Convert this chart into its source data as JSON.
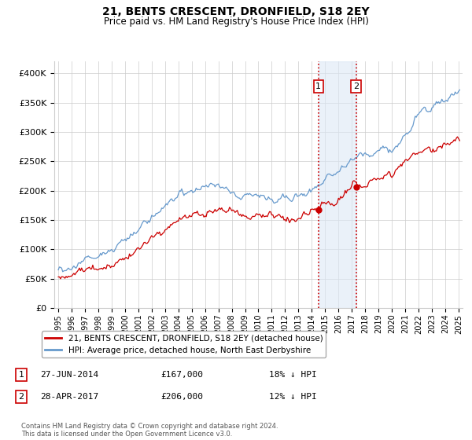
{
  "title": "21, BENTS CRESCENT, DRONFIELD, S18 2EY",
  "subtitle": "Price paid vs. HM Land Registry's House Price Index (HPI)",
  "legend_label_red": "21, BENTS CRESCENT, DRONFIELD, S18 2EY (detached house)",
  "legend_label_blue": "HPI: Average price, detached house, North East Derbyshire",
  "transaction1_label": "1",
  "transaction1_date": "27-JUN-2014",
  "transaction1_price": "£167,000",
  "transaction1_hpi": "18% ↓ HPI",
  "transaction2_label": "2",
  "transaction2_date": "28-APR-2017",
  "transaction2_price": "£206,000",
  "transaction2_hpi": "12% ↓ HPI",
  "footer": "Contains HM Land Registry data © Crown copyright and database right 2024.\nThis data is licensed under the Open Government Licence v3.0.",
  "ylim": [
    0,
    420000
  ],
  "yticks": [
    0,
    50000,
    100000,
    150000,
    200000,
    250000,
    300000,
    350000,
    400000
  ],
  "ytick_labels": [
    "£0",
    "£50K",
    "£100K",
    "£150K",
    "£200K",
    "£250K",
    "£300K",
    "£350K",
    "£400K"
  ],
  "color_red": "#cc0000",
  "color_blue": "#6699cc",
  "color_blue_fill": "#dce8f5",
  "vline1_x": 2014.5,
  "vline2_x": 2017.33,
  "marker1_x": 2014.5,
  "marker1_y": 167000,
  "marker2_x": 2017.33,
  "marker2_y": 206000,
  "background_color": "#ffffff",
  "grid_color": "#cccccc",
  "xmin": 1994.7,
  "xmax": 2025.3
}
